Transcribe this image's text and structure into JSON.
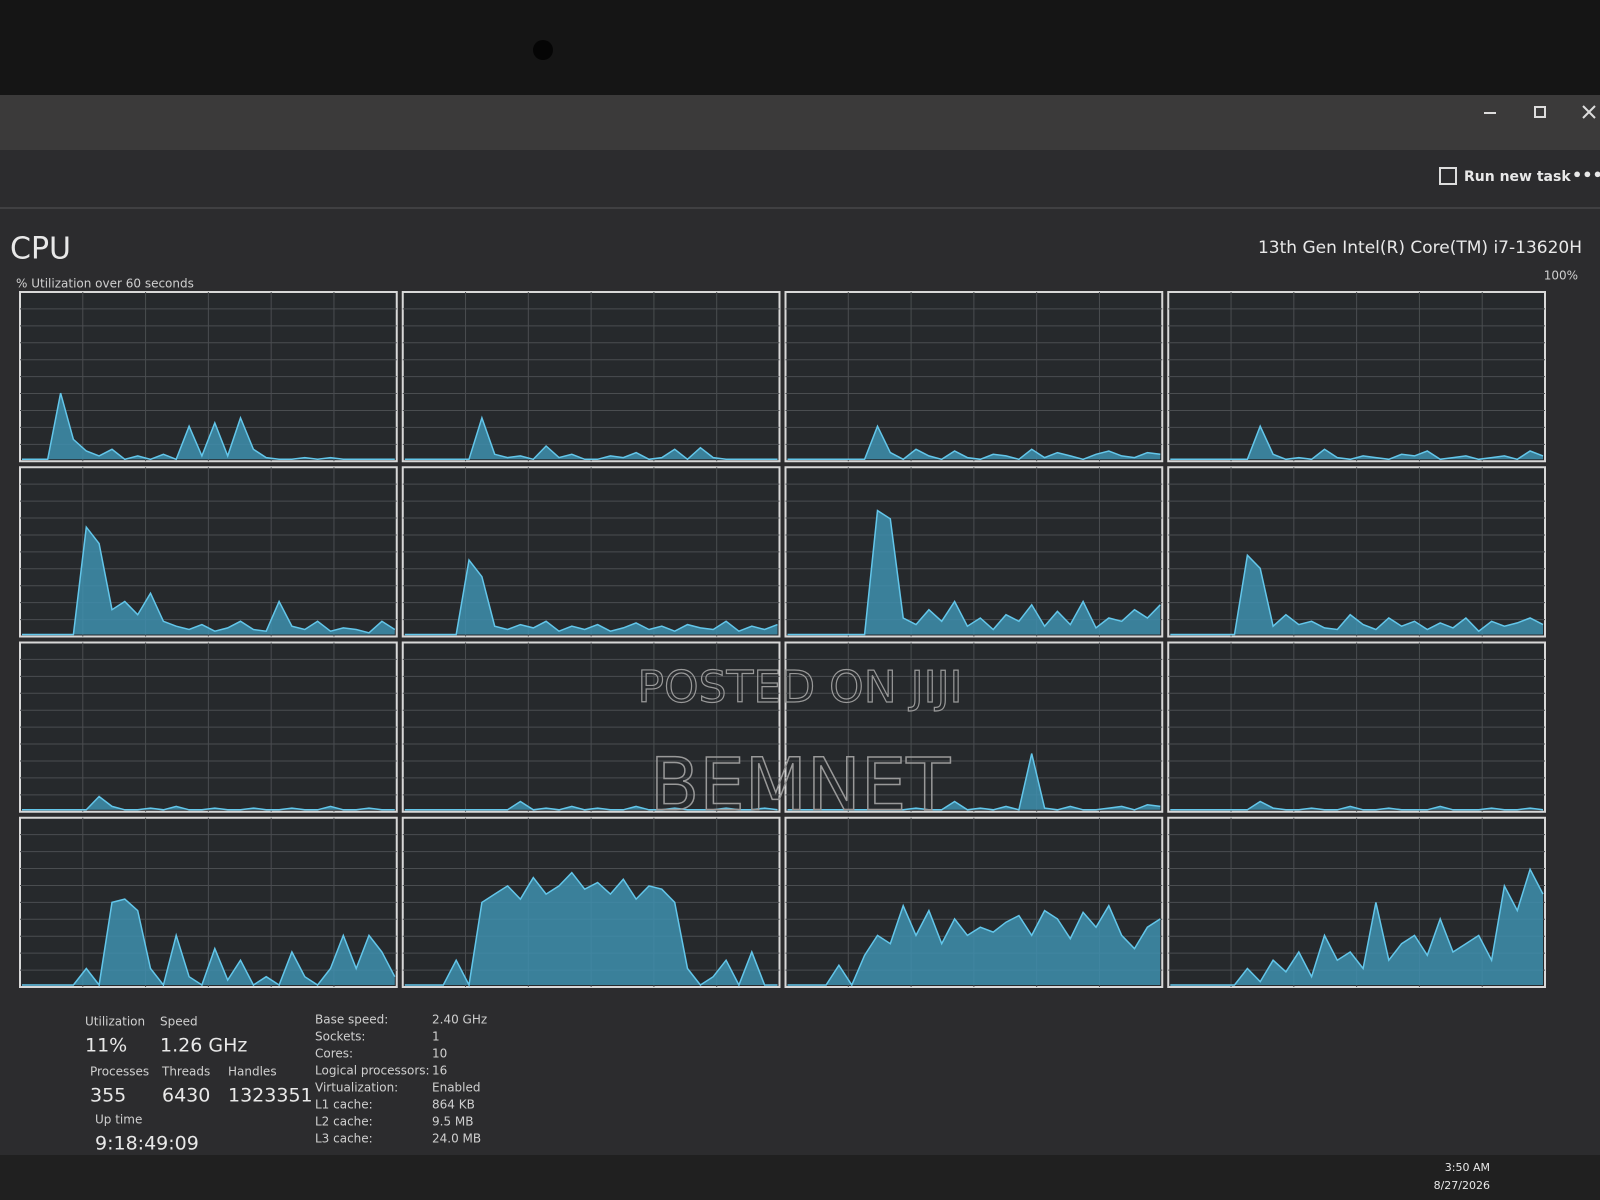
{
  "window": {
    "toolbar": {
      "run_new_task": "Run new task"
    },
    "page_title": "CPU",
    "graph_caption": "% Utilization over 60 seconds",
    "processor": "13th Gen Intel(R) Core(TM) i7-13620H",
    "graph_max_label": "100%",
    "ylim": [
      0,
      100
    ],
    "cores": [
      {
        "values": [
          0,
          0,
          0,
          40,
          12,
          5,
          2,
          6,
          0,
          2,
          0,
          3,
          0,
          20,
          2,
          22,
          2,
          25,
          6,
          1,
          0,
          0,
          1,
          0,
          1,
          0,
          0,
          0,
          0,
          0
        ]
      },
      {
        "values": [
          0,
          0,
          0,
          0,
          0,
          0,
          25,
          3,
          1,
          2,
          0,
          8,
          1,
          3,
          0,
          0,
          2,
          1,
          4,
          0,
          1,
          6,
          0,
          7,
          1,
          0,
          0,
          0,
          0,
          0
        ]
      },
      {
        "values": [
          0,
          0,
          0,
          0,
          0,
          0,
          0,
          20,
          4,
          0,
          6,
          2,
          0,
          5,
          1,
          0,
          3,
          2,
          0,
          6,
          1,
          4,
          2,
          0,
          3,
          5,
          2,
          1,
          4,
          3
        ]
      },
      {
        "values": [
          0,
          0,
          0,
          0,
          0,
          0,
          0,
          20,
          3,
          0,
          1,
          0,
          6,
          1,
          0,
          2,
          1,
          0,
          3,
          2,
          5,
          0,
          1,
          2,
          0,
          1,
          2,
          0,
          5,
          2
        ]
      },
      {
        "values": [
          0,
          0,
          0,
          0,
          0,
          65,
          55,
          15,
          20,
          12,
          25,
          8,
          5,
          3,
          6,
          2,
          4,
          8,
          3,
          2,
          20,
          5,
          3,
          8,
          2,
          4,
          3,
          1,
          8,
          3
        ]
      },
      {
        "values": [
          0,
          0,
          0,
          0,
          0,
          45,
          35,
          5,
          3,
          6,
          4,
          8,
          2,
          5,
          3,
          6,
          2,
          4,
          7,
          3,
          5,
          2,
          6,
          4,
          3,
          8,
          2,
          5,
          3,
          6
        ]
      },
      {
        "values": [
          0,
          0,
          0,
          0,
          0,
          0,
          0,
          75,
          70,
          10,
          6,
          15,
          8,
          20,
          5,
          10,
          3,
          12,
          8,
          18,
          5,
          14,
          6,
          20,
          4,
          10,
          8,
          15,
          10,
          18
        ]
      },
      {
        "values": [
          0,
          0,
          0,
          0,
          0,
          0,
          48,
          40,
          5,
          12,
          6,
          8,
          4,
          3,
          12,
          6,
          3,
          10,
          5,
          8,
          3,
          7,
          4,
          10,
          2,
          8,
          5,
          7,
          10,
          6
        ]
      },
      {
        "values": [
          0,
          0,
          0,
          0,
          0,
          0,
          8,
          2,
          0,
          0,
          1,
          0,
          2,
          0,
          0,
          1,
          0,
          0,
          1,
          0,
          0,
          1,
          0,
          0,
          2,
          0,
          0,
          1,
          0,
          0
        ]
      },
      {
        "values": [
          0,
          0,
          0,
          0,
          0,
          0,
          0,
          0,
          0,
          5,
          0,
          1,
          0,
          2,
          0,
          1,
          0,
          0,
          2,
          0,
          0,
          1,
          0,
          0,
          0,
          1,
          0,
          0,
          1,
          0
        ]
      },
      {
        "values": [
          0,
          0,
          0,
          0,
          0,
          0,
          0,
          0,
          0,
          0,
          1,
          0,
          0,
          5,
          0,
          1,
          0,
          2,
          0,
          34,
          1,
          0,
          2,
          0,
          0,
          1,
          2,
          0,
          3,
          2
        ]
      },
      {
        "values": [
          0,
          0,
          0,
          0,
          0,
          0,
          0,
          5,
          1,
          0,
          0,
          1,
          0,
          0,
          2,
          0,
          0,
          1,
          0,
          0,
          0,
          2,
          0,
          0,
          0,
          1,
          0,
          0,
          1,
          0
        ]
      },
      {
        "values": [
          0,
          0,
          0,
          0,
          0,
          10,
          0,
          50,
          52,
          45,
          10,
          0,
          30,
          5,
          0,
          22,
          3,
          15,
          0,
          5,
          0,
          20,
          5,
          0,
          10,
          30,
          10,
          30,
          20,
          5
        ]
      },
      {
        "values": [
          0,
          0,
          0,
          0,
          15,
          0,
          50,
          55,
          60,
          52,
          65,
          55,
          60,
          68,
          58,
          62,
          55,
          64,
          52,
          60,
          58,
          50,
          10,
          0,
          5,
          15,
          0,
          20,
          0,
          0
        ]
      },
      {
        "values": [
          0,
          0,
          0,
          0,
          12,
          0,
          18,
          30,
          25,
          48,
          30,
          45,
          25,
          40,
          30,
          35,
          32,
          38,
          42,
          30,
          45,
          40,
          28,
          44,
          35,
          48,
          30,
          22,
          35,
          40
        ]
      },
      {
        "values": [
          0,
          0,
          0,
          0,
          0,
          0,
          10,
          2,
          15,
          8,
          20,
          5,
          30,
          15,
          20,
          10,
          50,
          15,
          25,
          30,
          18,
          40,
          20,
          25,
          30,
          15,
          60,
          45,
          70,
          55
        ]
      }
    ],
    "stats": [
      {
        "label": "Utilization",
        "value": "11%"
      },
      {
        "label": "Speed",
        "value": "1.26 GHz"
      },
      {
        "label": "Processes",
        "value": "355"
      },
      {
        "label": "Threads",
        "value": "6430"
      },
      {
        "label": "Handles",
        "value": "1323351"
      },
      {
        "label": "Up time",
        "value": "9:18:49:09"
      }
    ],
    "details": [
      {
        "label": "Base speed:",
        "value": "2.40 GHz"
      },
      {
        "label": "Sockets:",
        "value": "1"
      },
      {
        "label": "Cores:",
        "value": "10"
      },
      {
        "label": "Logical processors:",
        "value": "16"
      },
      {
        "label": "Virtualization:",
        "value": "Enabled"
      },
      {
        "label": "L1 cache:",
        "value": "864 KB"
      },
      {
        "label": "L2 cache:",
        "value": "9.5 MB"
      },
      {
        "label": "L3 cache:",
        "value": "24.0 MB"
      }
    ],
    "watermark": [
      "POSTED ON JIJI",
      "BEMNET"
    ]
  },
  "taskbar": {
    "time": "3:50 AM",
    "date": "8/27/2026"
  }
}
